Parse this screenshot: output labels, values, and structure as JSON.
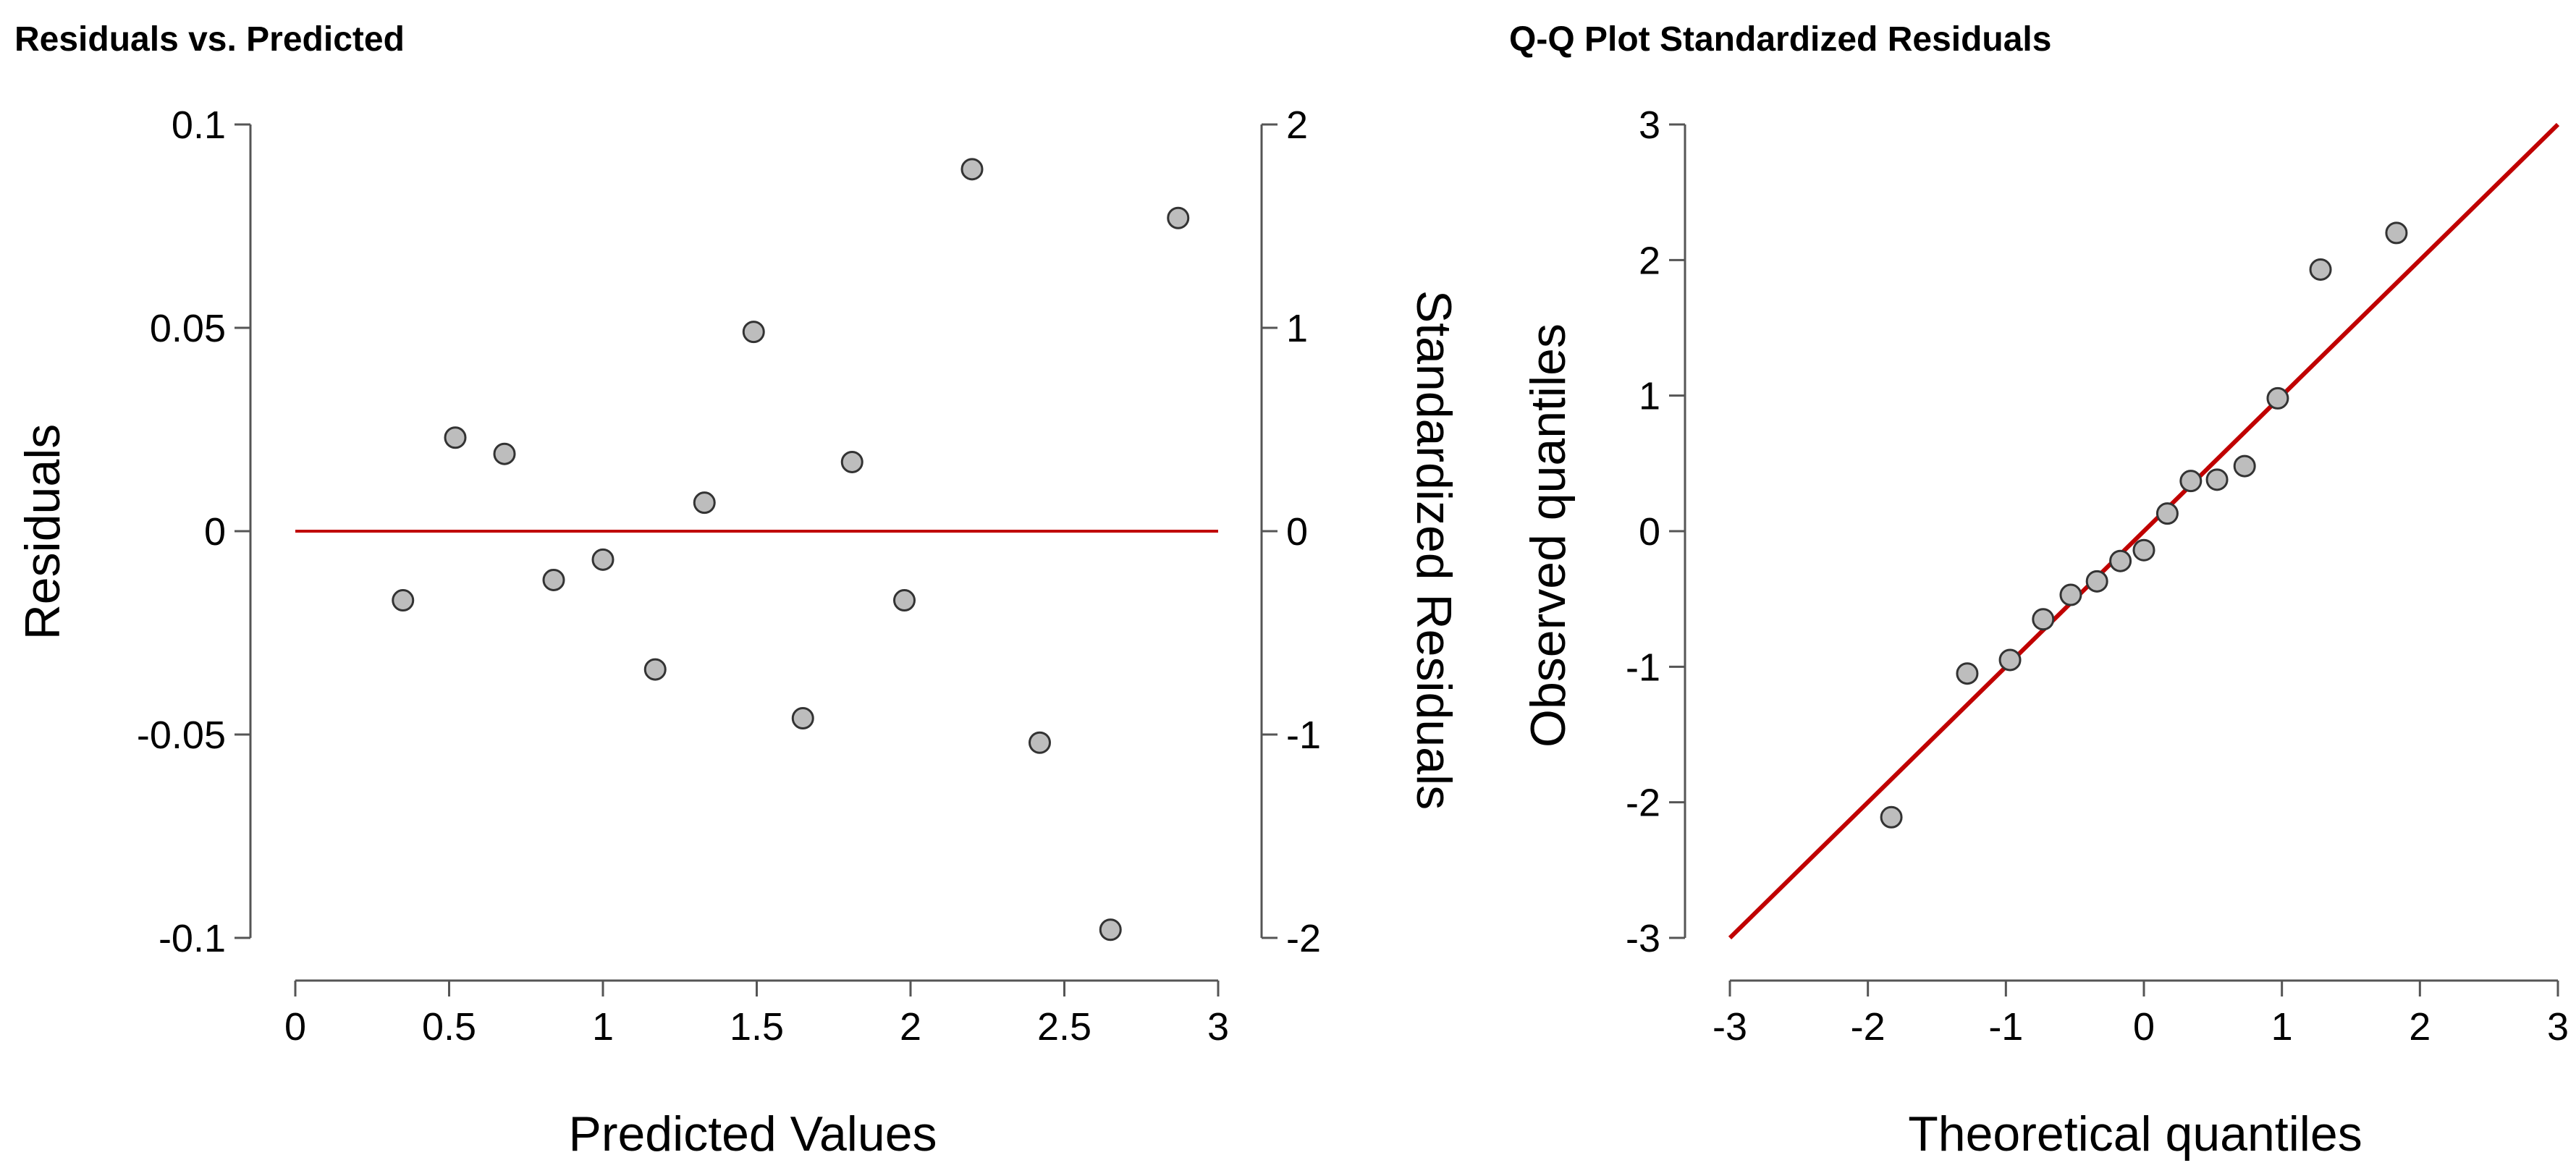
{
  "colors": {
    "point_fill": "#bdbdbd",
    "point_stroke": "#333333",
    "reference_line": "#c00000",
    "axis": "#555555"
  },
  "chart_data": [
    {
      "type": "scatter",
      "title": "Residuals vs. Predicted",
      "xlabel": "Predicted Values",
      "ylabel": "Residuals",
      "y2label": "Standardized Residuals",
      "xlim": [
        0,
        3
      ],
      "ylim": [
        -0.1,
        0.1
      ],
      "y2lim": [
        -2,
        2
      ],
      "x_ticks": [
        "0",
        "0.5",
        "1",
        "1.5",
        "2",
        "2.5",
        "3"
      ],
      "y_ticks": [
        "-0.1",
        "-0.05",
        "0",
        "0.05",
        "0.1"
      ],
      "y2_ticks": [
        "-2",
        "-1",
        "0",
        "1",
        "2"
      ],
      "reference_line": {
        "type": "horizontal",
        "y": 0,
        "x_range": [
          0,
          3
        ]
      },
      "grid": false,
      "points": [
        {
          "x": 0.35,
          "y": -0.017
        },
        {
          "x": 0.52,
          "y": 0.023
        },
        {
          "x": 0.68,
          "y": 0.019
        },
        {
          "x": 0.84,
          "y": -0.012
        },
        {
          "x": 1.0,
          "y": -0.007
        },
        {
          "x": 1.17,
          "y": -0.034
        },
        {
          "x": 1.33,
          "y": 0.007
        },
        {
          "x": 1.49,
          "y": 0.049
        },
        {
          "x": 1.65,
          "y": -0.046
        },
        {
          "x": 1.81,
          "y": 0.017
        },
        {
          "x": 1.98,
          "y": -0.017
        },
        {
          "x": 2.2,
          "y": 0.089
        },
        {
          "x": 2.42,
          "y": -0.052
        },
        {
          "x": 2.65,
          "y": -0.098
        },
        {
          "x": 2.87,
          "y": 0.077
        }
      ]
    },
    {
      "type": "scatter",
      "title": "Q-Q Plot Standardized Residuals",
      "xlabel": "Theoretical quantiles",
      "ylabel": "Observed quantiles",
      "xlim": [
        -3,
        3
      ],
      "ylim": [
        -3,
        3
      ],
      "x_ticks": [
        "-3",
        "-2",
        "-1",
        "0",
        "1",
        "2",
        "3"
      ],
      "y_ticks": [
        "-3",
        "-2",
        "-1",
        "0",
        "1",
        "2",
        "3"
      ],
      "reference_line": {
        "type": "identity",
        "from": [
          -3,
          -3
        ],
        "to": [
          3,
          3
        ]
      },
      "grid": false,
      "points": [
        {
          "x": -1.83,
          "y": -2.11
        },
        {
          "x": -1.28,
          "y": -1.05
        },
        {
          "x": -0.97,
          "y": -0.95
        },
        {
          "x": -0.73,
          "y": -0.65
        },
        {
          "x": -0.53,
          "y": -0.47
        },
        {
          "x": -0.34,
          "y": -0.37
        },
        {
          "x": -0.17,
          "y": -0.22
        },
        {
          "x": 0.0,
          "y": -0.14
        },
        {
          "x": 0.17,
          "y": 0.13
        },
        {
          "x": 0.34,
          "y": 0.37
        },
        {
          "x": 0.53,
          "y": 0.38
        },
        {
          "x": 0.73,
          "y": 0.48
        },
        {
          "x": 0.97,
          "y": 0.98
        },
        {
          "x": 1.28,
          "y": 1.93
        },
        {
          "x": 1.83,
          "y": 2.2
        }
      ]
    }
  ]
}
